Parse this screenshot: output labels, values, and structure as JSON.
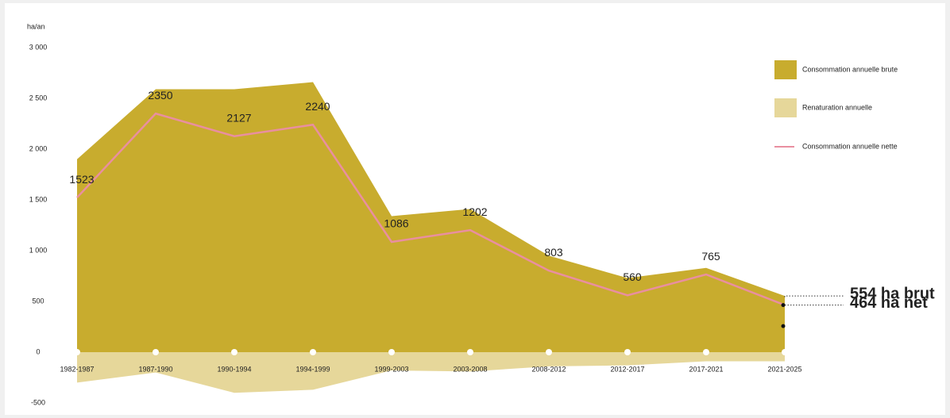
{
  "chart_data": {
    "type": "area",
    "y_unit": "ha/an",
    "categories": [
      "1982-1987",
      "1987-1990",
      "1990-1994",
      "1994-1999",
      "1999-2003",
      "2003-2008",
      "2008-2012",
      "2012-2017",
      "2017-2021",
      "2021-2025"
    ],
    "series": [
      {
        "name": "Consommation annuelle brute",
        "color": "#c8ac2e",
        "kind": "area",
        "values": [
          1900,
          2590,
          2590,
          2660,
          1340,
          1410,
          950,
          730,
          830,
          554
        ]
      },
      {
        "name": "Renaturation annuelle",
        "color": "#e6d79a",
        "kind": "area",
        "values": [
          -300,
          -200,
          -400,
          -370,
          -180,
          -190,
          -140,
          -130,
          -90,
          -90
        ]
      },
      {
        "name": "Consommation annuelle nette",
        "color": "#e98fa0",
        "kind": "line",
        "values": [
          1523,
          2350,
          2127,
          2240,
          1086,
          1202,
          803,
          560,
          765,
          464
        ],
        "value_labels": [
          "1523",
          "2350",
          "2127",
          "2240",
          "1086",
          "1202",
          "803",
          "560",
          "765",
          null
        ]
      }
    ],
    "annotations": [
      "554 ha brut",
      "464 ha net"
    ],
    "ylim": [
      -500,
      3000
    ],
    "yticks": [
      -500,
      0,
      500,
      {
        "value": 1000,
        "label": "1 000"
      },
      {
        "value": 1500,
        "label": "1 500"
      },
      {
        "value": 2000,
        "label": "2 000"
      },
      {
        "value": 2500,
        "label": "2 500"
      },
      {
        "value": 3000,
        "label": "3 000"
      }
    ],
    "grid": false,
    "legend": "right"
  }
}
